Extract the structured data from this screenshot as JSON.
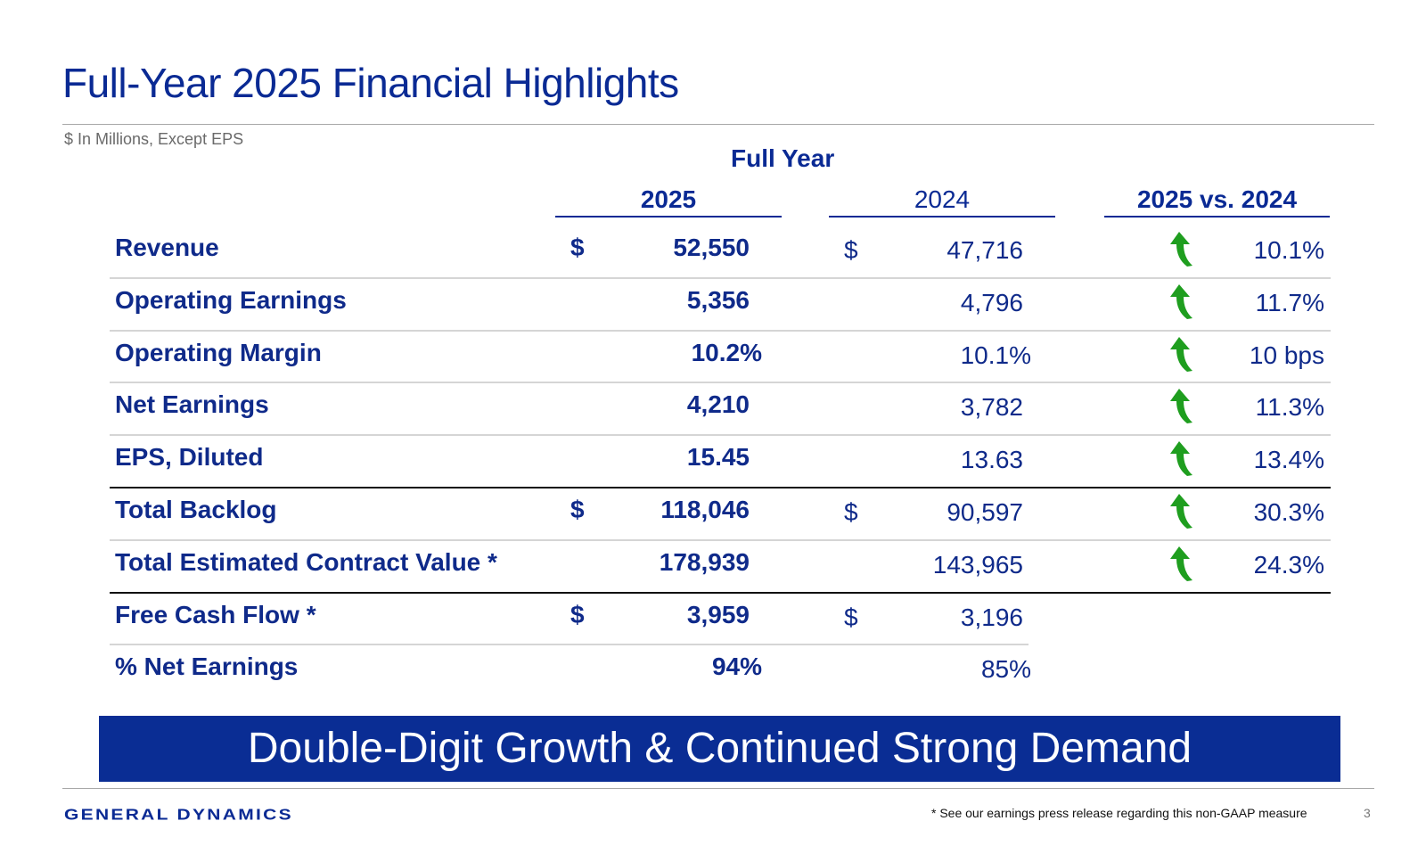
{
  "header": {
    "title": "Full-Year 2025 Financial Highlights",
    "subtitle": "$ In Millions, Except EPS"
  },
  "table": {
    "group_header": "Full Year",
    "columns": {
      "y2025": "2025",
      "y2024": "2024",
      "change": "2025 vs. 2024"
    },
    "rows": [
      {
        "label": "Revenue",
        "dollar_2025": "$",
        "v2025": "52,550",
        "dollar_2024": "$",
        "v2024": "47,716",
        "change": "10.1%",
        "trend": "up"
      },
      {
        "label": "Operating Earnings",
        "dollar_2025": "",
        "v2025": "5,356",
        "dollar_2024": "",
        "v2024": "4,796",
        "change": "11.7%",
        "trend": "up"
      },
      {
        "label": "Operating Margin",
        "dollar_2025": "",
        "v2025": "10.2%",
        "dollar_2024": "",
        "v2024": "10.1%",
        "change": "10 bps",
        "trend": "up"
      },
      {
        "label": "Net Earnings",
        "dollar_2025": "",
        "v2025": "4,210",
        "dollar_2024": "",
        "v2024": "3,782",
        "change": "11.3%",
        "trend": "up"
      },
      {
        "label": "EPS, Diluted",
        "dollar_2025": "",
        "v2025": "15.45",
        "dollar_2024": "",
        "v2024": "13.63",
        "change": "13.4%",
        "trend": "up"
      },
      {
        "label": "Total Backlog",
        "dollar_2025": "$",
        "v2025": "118,046",
        "dollar_2024": "$",
        "v2024": "90,597",
        "change": "30.3%",
        "trend": "up"
      },
      {
        "label": "Total Estimated Contract Value *",
        "dollar_2025": "",
        "v2025": "178,939",
        "dollar_2024": "",
        "v2024": "143,965",
        "change": "24.3%",
        "trend": "up"
      },
      {
        "label": "Free Cash Flow *",
        "dollar_2025": "$",
        "v2025": "3,959",
        "dollar_2024": "$",
        "v2024": "3,196",
        "change": "",
        "trend": ""
      },
      {
        "label": "% Net Earnings",
        "dollar_2025": "",
        "v2025": "94%",
        "dollar_2024": "",
        "v2024": "85%",
        "change": "",
        "trend": ""
      }
    ]
  },
  "banner": {
    "text": "Double-Digit Growth & Continued Strong Demand"
  },
  "footer": {
    "logo_text": "GENERAL DYNAMICS",
    "footnote": "* See our earnings press release regarding this non-GAAP measure",
    "page_number": "3"
  },
  "colors": {
    "brand": "#0a2d94",
    "arrow_up": "#1f9e1f"
  },
  "icons": {
    "trend_up": "green-up-arrow-icon"
  }
}
